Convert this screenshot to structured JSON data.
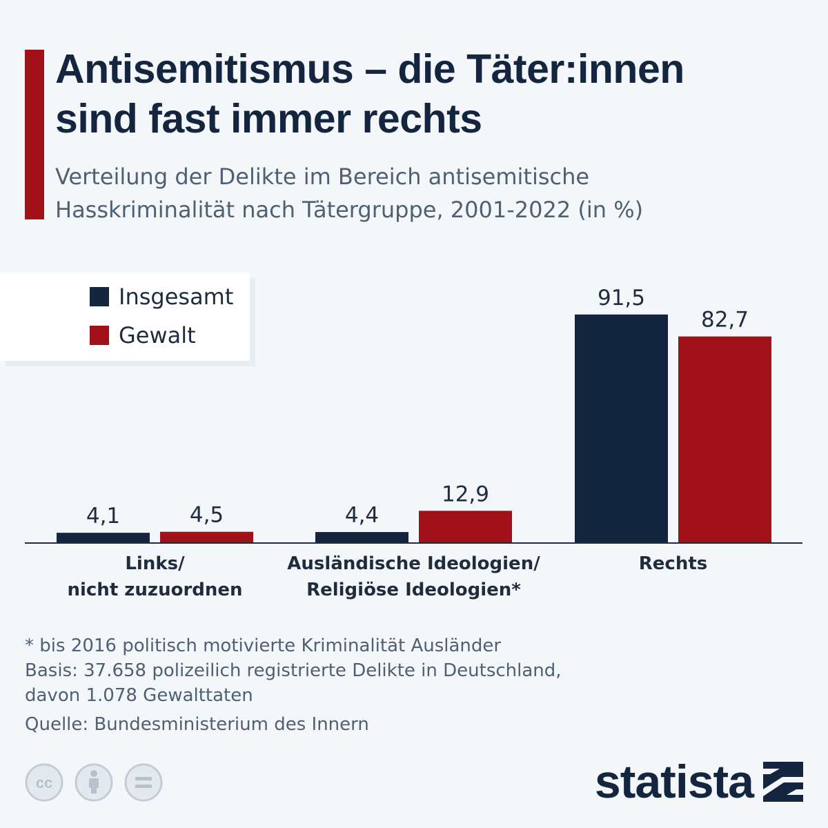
{
  "header": {
    "title_line1": "Antisemitismus – die Täter:innen",
    "title_line2": "sind fast immer rechts",
    "subtitle_line1": "Verteilung der Delikte im Bereich antisemitische",
    "subtitle_line2": "Hasskriminalität nach Tätergruppe, 2001-2022 (in %)"
  },
  "colors": {
    "accent": "#a0111a",
    "insgesamt": "#13253f",
    "gewalt": "#a0111a"
  },
  "chart_data": {
    "type": "bar",
    "title": "Antisemitismus – die Täter:innen sind fast immer rechts",
    "subtitle": "Verteilung der Delikte im Bereich antisemitische Hasskriminalität nach Tätergruppe, 2001-2022 (in %)",
    "categories": [
      [
        "Links/",
        "nicht zuzuordnen"
      ],
      [
        "Ausländische Ideologien/",
        "Religiöse Ideologien*"
      ],
      [
        "Rechts"
      ]
    ],
    "series": [
      {
        "name": "Insgesamt",
        "values": [
          4.1,
          4.4,
          91.5
        ],
        "labels": [
          "4,1",
          "4,4",
          "91,5"
        ],
        "color": "#13253f"
      },
      {
        "name": "Gewalt",
        "values": [
          4.5,
          12.9,
          82.7
        ],
        "labels": [
          "4,5",
          "12,9",
          "82,7"
        ],
        "color": "#a0111a"
      }
    ],
    "ylim": [
      0,
      100
    ],
    "grid": false,
    "legend_position": "top-left",
    "xlabel": "",
    "ylabel": ""
  },
  "notes": {
    "footnote_line1": "* bis 2016 politisch motivierte Kriminalität Ausländer",
    "footnote_line2": "Basis: 37.658 polizeilich registrierte Delikte in Deutschland,",
    "footnote_line3": "davon 1.078 Gewalttaten",
    "source": "Quelle: Bundesministerium des Innern"
  },
  "license_icons": [
    "cc-icon",
    "attribution-icon",
    "no-derivatives-icon"
  ],
  "brand": {
    "name": "statista"
  }
}
